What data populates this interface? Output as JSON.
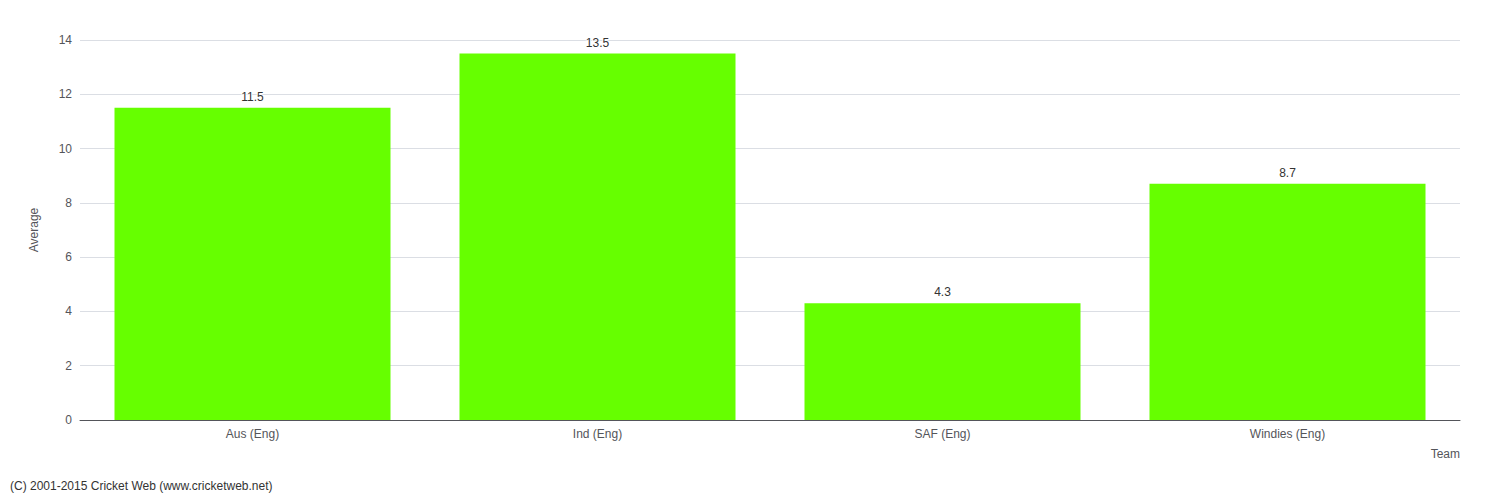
{
  "chart_data": {
    "type": "bar",
    "categories": [
      "Aus (Eng)",
      "Ind (Eng)",
      "SAF (Eng)",
      "Windies (Eng)"
    ],
    "values": [
      11.5,
      13.5,
      4.3,
      8.7
    ],
    "color": "#66ff00",
    "xlabel": "Team",
    "ylabel": "Average",
    "ylim": [
      0,
      14
    ],
    "yticks": [
      0,
      2,
      4,
      6,
      8,
      10,
      12,
      14
    ],
    "grid": true,
    "data_labels": true,
    "annotations": [
      "(C) 2001-2015 Cricket Web (www.cricketweb.net)"
    ]
  }
}
